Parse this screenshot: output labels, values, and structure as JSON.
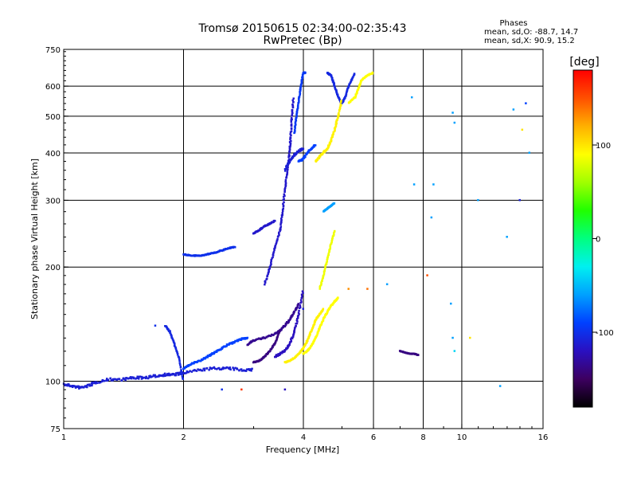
{
  "chart_data": {
    "type": "scatter",
    "title": "Tromsø 20150615 02:34:00-02:35:43",
    "subtitle": "RwPretec (Bp)",
    "xlabel": "Frequency [MHz]",
    "ylabel": "Stationary phase Virtual Height [km]",
    "x_scale": "log2",
    "y_scale": "log",
    "xlim": [
      1,
      16
    ],
    "ylim": [
      75,
      750
    ],
    "x_ticks": [
      1,
      2,
      4,
      6,
      8,
      10,
      16
    ],
    "x_tick_labels": [
      "1",
      "2",
      "4",
      "6",
      "8",
      "10",
      "16"
    ],
    "x_gridlines": [
      2,
      4,
      6,
      8,
      10
    ],
    "y_ticks": [
      75,
      100,
      200,
      300,
      400,
      500,
      600,
      750
    ],
    "y_tick_labels": [
      "75",
      "100",
      "200",
      "300",
      "400",
      "500",
      "600",
      "750"
    ],
    "y_gridlines": [
      100,
      200,
      300,
      400,
      500,
      600
    ],
    "grid": true,
    "phase_legend": {
      "title": "Phases",
      "lines": [
        "mean, sd,O: -88.7, 14.7",
        "mean, sd,X:  90.9, 15.2"
      ]
    },
    "colorbar": {
      "label": "[deg]",
      "range": [
        -180,
        180
      ],
      "ticks": [
        100,
        0,
        -100
      ],
      "tick_labels": [
        "100",
        "0",
        "-100"
      ],
      "colors": [
        "#000000",
        "#3d0060",
        "#2a10c0",
        "#0040ff",
        "#00a0ff",
        "#00f0f0",
        "#00ff80",
        "#20ff00",
        "#a0ff00",
        "#ffff00",
        "#ffb000",
        "#ff5000",
        "#ff0000"
      ]
    },
    "series": [
      {
        "traces": [
          {
            "x": [
              1.0,
              1.05,
              1.1,
              1.15,
              1.2,
              1.3,
              1.4,
              1.5,
              1.6,
              1.7,
              1.8,
              1.9,
              2.0,
              2.2,
              2.4,
              2.6,
              2.8,
              3.0
            ],
            "y": [
              98,
              97,
              96,
              97,
              99,
              101,
              101,
              102,
              102,
              103,
              104,
              104,
              105,
              107,
              108,
              108,
              107,
              107
            ],
            "phase": -110,
            "spread": 0.05
          },
          {
            "x": [
              2.0,
              2.1,
              2.2,
              2.3,
              2.4,
              2.5,
              2.6,
              2.7,
              2.8,
              2.9
            ],
            "y": [
              108,
              111,
              113,
              116,
              119,
              122,
              125,
              127,
              129,
              130
            ],
            "phase": -90,
            "spread": 0.03
          },
          {
            "x": [
              2.9,
              3.0,
              3.2,
              3.4,
              3.5,
              3.6,
              3.7,
              3.8,
              3.9
            ],
            "y": [
              125,
              128,
              130,
              133,
              136,
              140,
              145,
              152,
              160
            ],
            "phase": -135,
            "spread": 0.03
          },
          {
            "x": [
              3.0,
              3.1,
              3.2,
              3.3,
              3.4,
              3.5
            ],
            "y": [
              112,
              113,
              116,
              120,
              126,
              136
            ],
            "phase": -140,
            "spread": 0.02
          },
          {
            "x": [
              3.2,
              3.3,
              3.4,
              3.5,
              3.55,
              3.6,
              3.65,
              3.7,
              3.72,
              3.75,
              3.78
            ],
            "y": [
              180,
              200,
              225,
              250,
              280,
              320,
              360,
              400,
              440,
              500,
              560
            ],
            "phase": -115,
            "spread": 0.03
          },
          {
            "x": [
              3.4,
              3.5,
              3.6,
              3.7,
              3.8,
              3.9,
              4.0
            ],
            "y": [
              116,
              118,
              120,
              125,
              135,
              150,
              175
            ],
            "phase": -120,
            "spread": 0.03
          },
          {
            "x": [
              3.6,
              3.7,
              3.8,
              3.9,
              4.0
            ],
            "y": [
              360,
              380,
              395,
              405,
              410
            ],
            "phase": -110,
            "spread": 0.04
          },
          {
            "x": [
              2.0,
              2.1,
              2.2,
              2.3,
              2.4,
              2.5,
              2.6,
              2.7
            ],
            "y": [
              216,
              214,
              214,
              216,
              218,
              221,
              224,
              226
            ],
            "phase": -100,
            "spread": 0.02
          },
          {
            "x": [
              3.0,
              3.1,
              3.2,
              3.3,
              3.4
            ],
            "y": [
              245,
              250,
              256,
              260,
              265
            ],
            "phase": -115,
            "spread": 0.02
          },
          {
            "x": [
              3.8,
              3.85,
              3.9,
              3.95,
              4.0,
              4.05
            ],
            "y": [
              450,
              500,
              550,
              600,
              650,
              650
            ],
            "phase": -95,
            "spread": 0.02
          },
          {
            "x": [
              3.9,
              4.0,
              4.1,
              4.2,
              4.3
            ],
            "y": [
              380,
              385,
              400,
              410,
              420
            ],
            "phase": -90,
            "spread": 0.03
          },
          {
            "x": [
              4.6,
              4.7,
              4.8,
              4.9,
              5.0,
              5.1,
              5.2,
              5.4
            ],
            "y": [
              650,
              640,
              600,
              560,
              540,
              560,
              600,
              650
            ],
            "phase": -105,
            "spread": 0.02
          },
          {
            "x": [
              1.8,
              1.85,
              1.9,
              1.95,
              2.0
            ],
            "y": [
              140,
              135,
              125,
              115,
              100
            ],
            "phase": -105,
            "spread": 0.02
          },
          {
            "x": [
              3.6,
              3.7,
              3.8,
              3.9,
              4.0,
              4.1,
              4.2,
              4.3,
              4.4,
              4.5
            ],
            "y": [
              112,
              113,
              115,
              118,
              122,
              128,
              136,
              145,
              150,
              155
            ],
            "phase": 95,
            "spread": 0.02
          },
          {
            "x": [
              4.0,
              4.1,
              4.2,
              4.3,
              4.4,
              4.5,
              4.6,
              4.7,
              4.8,
              4.9
            ],
            "y": [
              118,
              120,
              124,
              130,
              138,
              146,
              152,
              158,
              162,
              166
            ],
            "phase": 90,
            "spread": 0.02
          },
          {
            "x": [
              4.3,
              4.4,
              4.5,
              4.6,
              4.7,
              4.8,
              4.9,
              5.0
            ],
            "y": [
              380,
              390,
              400,
              410,
              430,
              460,
              500,
              550
            ],
            "phase": 95,
            "spread": 0.03
          },
          {
            "x": [
              5.2,
              5.4,
              5.5,
              5.6,
              5.8,
              6.0
            ],
            "y": [
              540,
              560,
              590,
              620,
              640,
              650
            ],
            "phase": 90,
            "spread": 0.02
          },
          {
            "x": [
              4.4,
              4.5,
              4.6,
              4.7,
              4.8
            ],
            "y": [
              175,
              190,
              210,
              230,
              250
            ],
            "phase": 85,
            "spread": 0.02
          },
          {
            "x": [
              7.0,
              7.2,
              7.4,
              7.6,
              7.8
            ],
            "y": [
              120,
              119,
              118,
              118,
              117
            ],
            "phase": -140,
            "spread": 0.01
          },
          {
            "x": [
              4.5,
              4.6,
              4.7,
              4.8
            ],
            "y": [
              280,
              285,
              290,
              295
            ],
            "phase": -60,
            "spread": 0.01
          }
        ],
        "scatter_points": [
          {
            "x": 9.5,
            "y": 510,
            "phase": -60
          },
          {
            "x": 9.6,
            "y": 480,
            "phase": -60
          },
          {
            "x": 9.4,
            "y": 160,
            "phase": -60
          },
          {
            "x": 9.5,
            "y": 130,
            "phase": -60
          },
          {
            "x": 9.6,
            "y": 120,
            "phase": -40
          },
          {
            "x": 14.5,
            "y": 540,
            "phase": -90
          },
          {
            "x": 13.5,
            "y": 520,
            "phase": -60
          },
          {
            "x": 14.0,
            "y": 300,
            "phase": -110
          },
          {
            "x": 13.0,
            "y": 240,
            "phase": -60
          },
          {
            "x": 14.8,
            "y": 400,
            "phase": -60
          },
          {
            "x": 12.5,
            "y": 97,
            "phase": -60
          },
          {
            "x": 7.5,
            "y": 560,
            "phase": -60
          },
          {
            "x": 7.6,
            "y": 330,
            "phase": -60
          },
          {
            "x": 8.5,
            "y": 330,
            "phase": -60
          },
          {
            "x": 8.4,
            "y": 270,
            "phase": -60
          },
          {
            "x": 10.5,
            "y": 130,
            "phase": 100
          },
          {
            "x": 14.2,
            "y": 460,
            "phase": 100
          },
          {
            "x": 6.5,
            "y": 180,
            "phase": -60
          },
          {
            "x": 5.8,
            "y": 175,
            "phase": 140
          },
          {
            "x": 8.2,
            "y": 190,
            "phase": 150
          },
          {
            "x": 5.2,
            "y": 175,
            "phase": 130
          },
          {
            "x": 1.7,
            "y": 140,
            "phase": -100
          },
          {
            "x": 2.8,
            "y": 95,
            "phase": 160
          },
          {
            "x": 2.5,
            "y": 95,
            "phase": -100
          },
          {
            "x": 3.6,
            "y": 95,
            "phase": -120
          },
          {
            "x": 4.0,
            "y": 155,
            "phase": -110
          },
          {
            "x": 11.0,
            "y": 300,
            "phase": -60
          }
        ]
      }
    ]
  }
}
